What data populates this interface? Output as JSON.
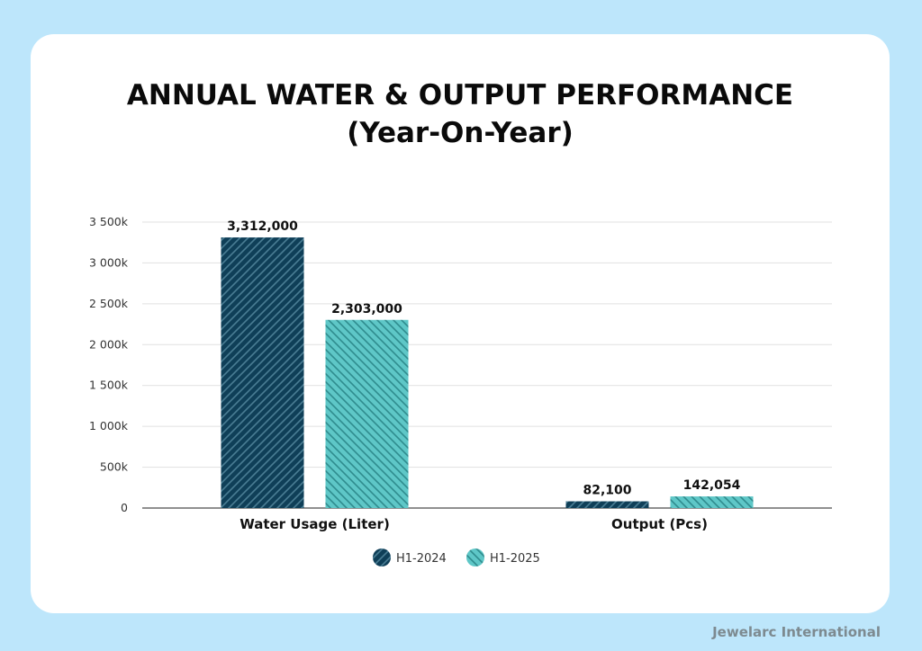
{
  "chart_data": {
    "type": "bar",
    "title": "ANNUAL WATER & OUTPUT PERFORMANCE",
    "subtitle": "(Year-On-Year)",
    "categories": [
      "Water Usage (Liter)",
      "Output (Pcs)"
    ],
    "series": [
      {
        "name": "H1-2024",
        "values": [
          3312000,
          82100
        ],
        "labels": [
          "3,312,000",
          "82,100"
        ],
        "color": "#0f3f58"
      },
      {
        "name": "H1-2025",
        "values": [
          2303000,
          142054
        ],
        "labels": [
          "2,303,000",
          "142,054"
        ],
        "color": "#5ec7c7"
      }
    ],
    "ylim": [
      0,
      3500000
    ],
    "yticks": [
      0,
      500000,
      1000000,
      1500000,
      2000000,
      2500000,
      3000000,
      3500000
    ],
    "ytick_labels": [
      "0",
      "500k",
      "1 000k",
      "1 500k",
      "2 000k",
      "2 500k",
      "3 000k",
      "3 500k"
    ],
    "grid": true,
    "legend_position": "bottom-center",
    "bar_pattern": "diagonal-hatch"
  },
  "footer": {
    "brand": "Jewelarc International"
  },
  "colors": {
    "background": "#bde6fb",
    "card": "#ffffff",
    "brand_text": "#7d8a90"
  }
}
